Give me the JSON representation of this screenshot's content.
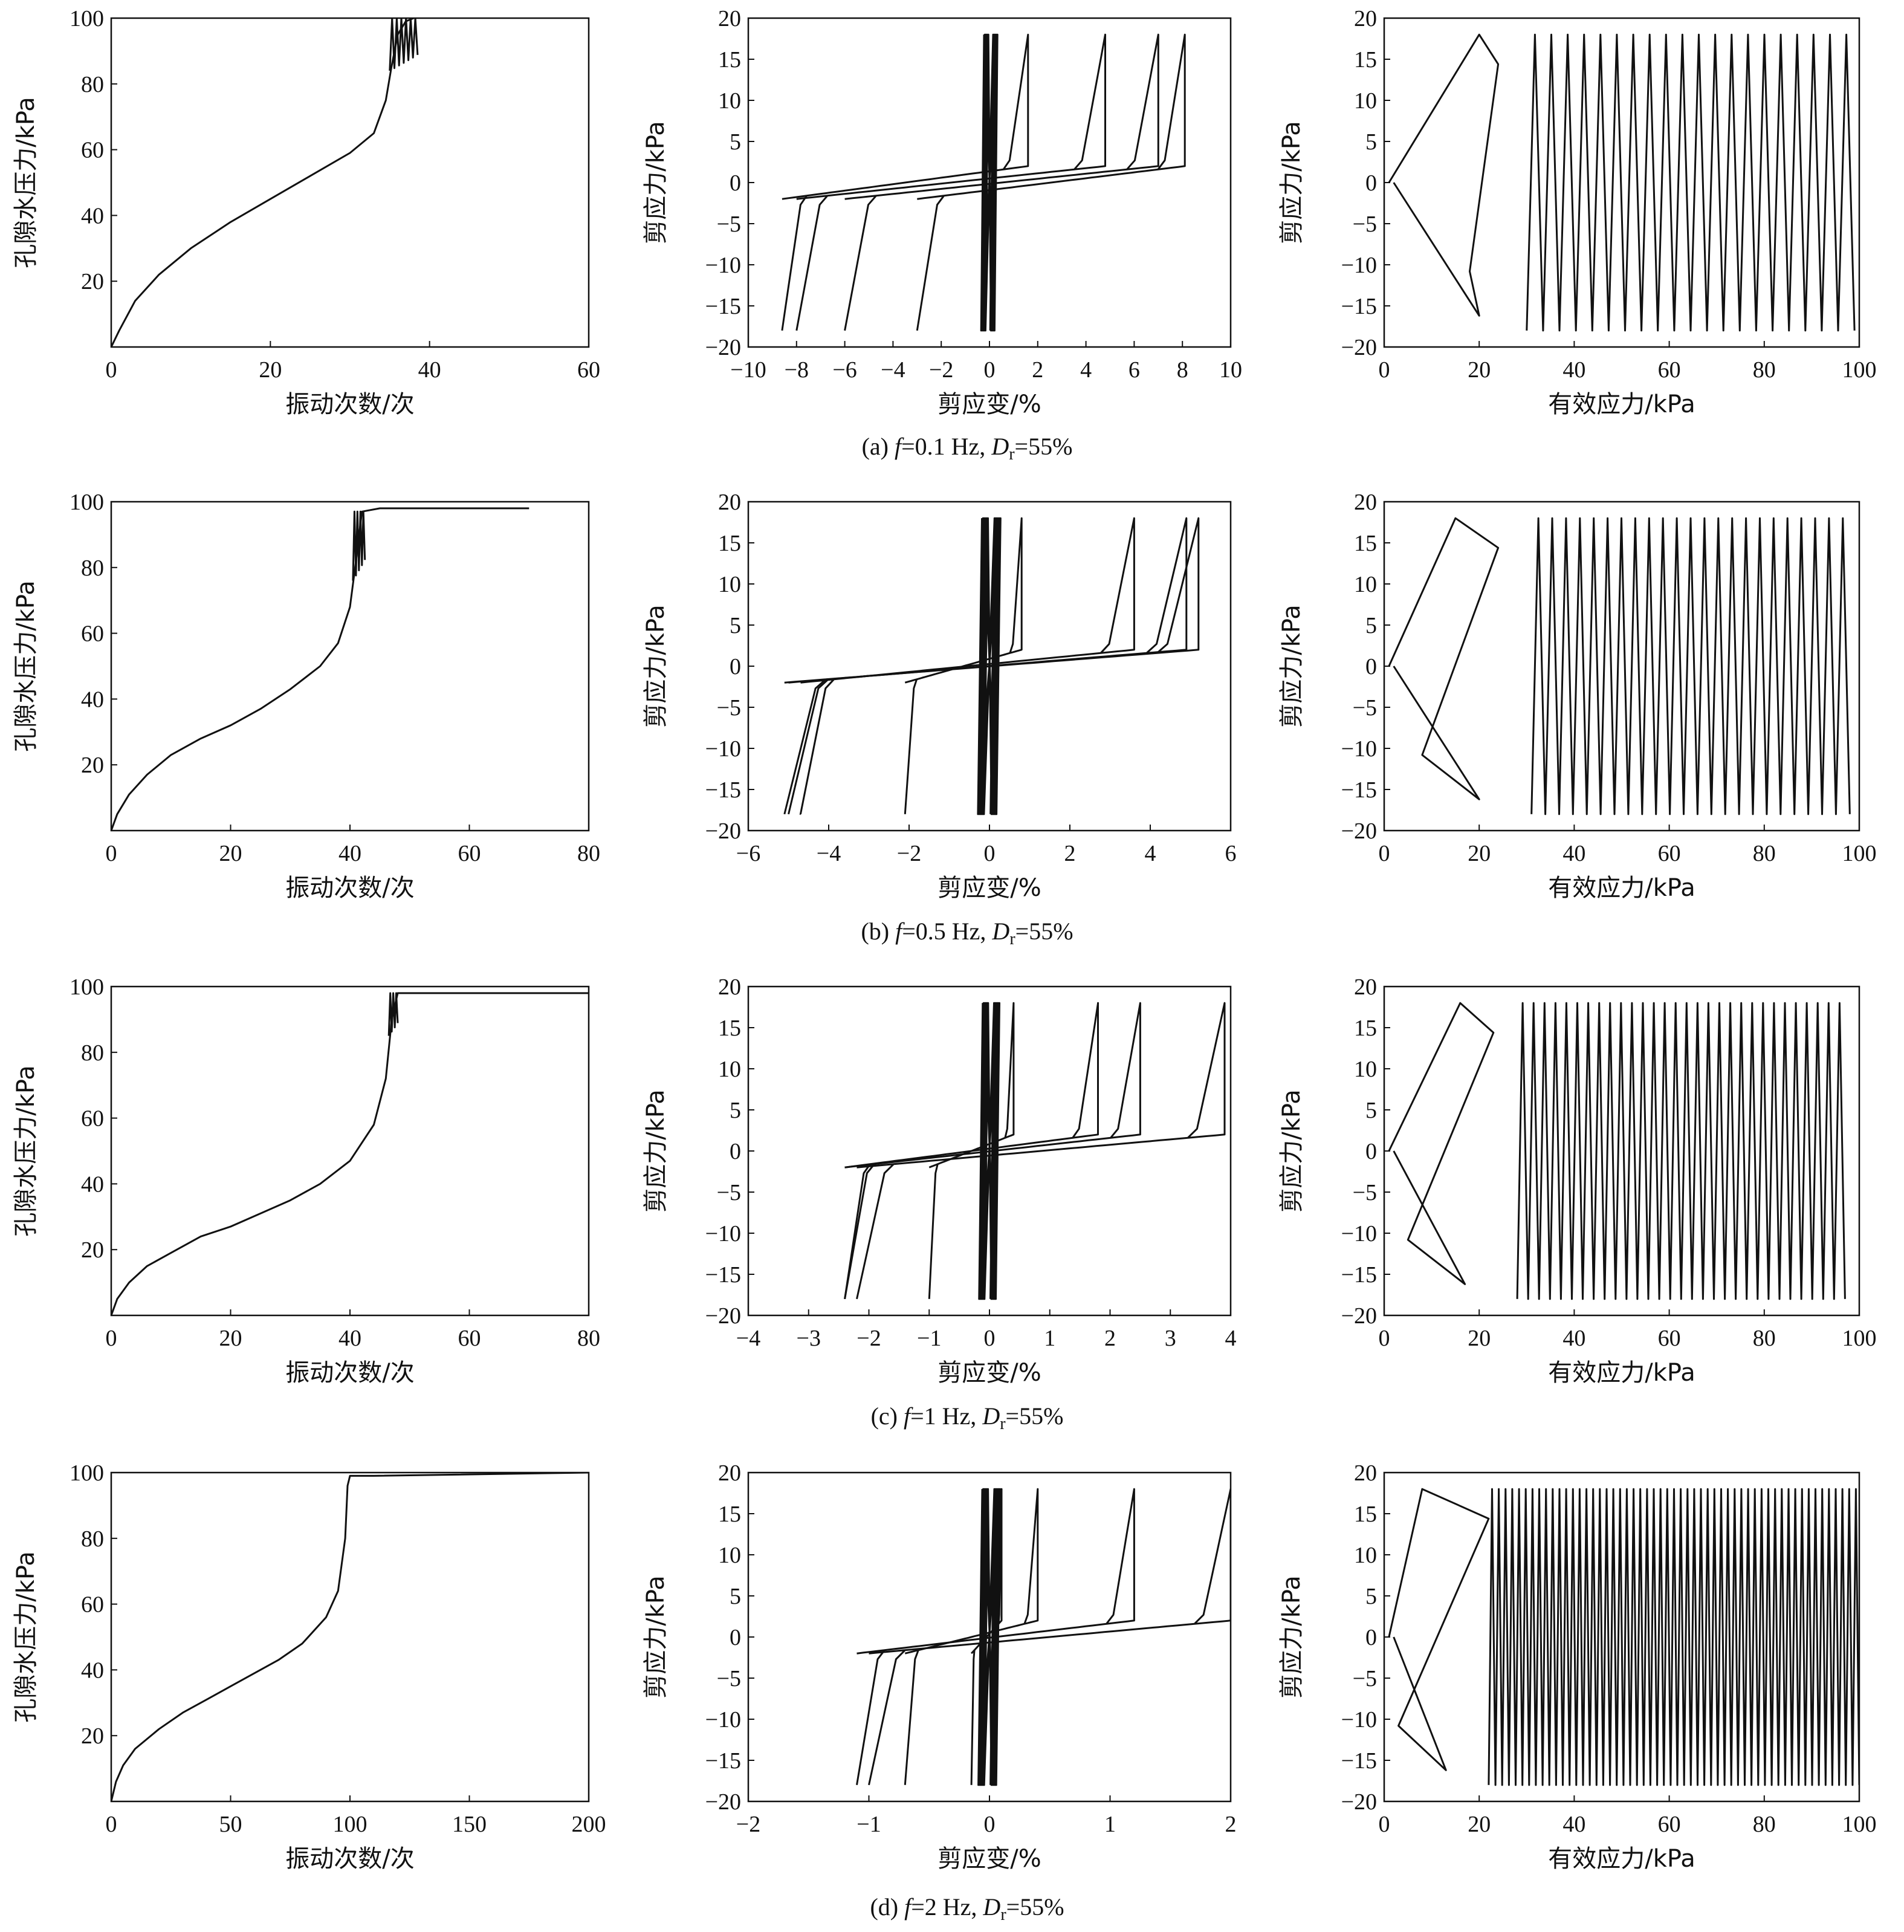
{
  "figure": {
    "rows": [
      {
        "caption": {
          "prefix": "(a) ",
          "f_sym": "f",
          "f_val": "=0.1 Hz, ",
          "d_sym": "D",
          "d_sub": "r",
          "d_val": "=55%"
        }
      },
      {
        "caption": {
          "prefix": "(b) ",
          "f_sym": "f",
          "f_val": "=0.5 Hz, ",
          "d_sym": "D",
          "d_sub": "r",
          "d_val": "=55%"
        }
      },
      {
        "caption": {
          "prefix": "(c) ",
          "f_sym": "f",
          "f_val": "=1 Hz, ",
          "d_sym": "D",
          "d_sub": "r",
          "d_val": "=55%"
        }
      },
      {
        "caption": {
          "prefix": "(d) ",
          "f_sym": "f",
          "f_val": "=2 Hz, ",
          "d_sym": "D",
          "d_sub": "r",
          "d_val": "=55%"
        }
      }
    ]
  },
  "chart_data": [
    {
      "id": "a1",
      "type": "line",
      "xlabel": "振动次数/次",
      "ylabel": "孔隙水压力/kPa",
      "xlim": [
        0,
        60
      ],
      "ylim": [
        0,
        100
      ],
      "xticks": [
        0,
        20,
        40,
        60
      ],
      "yticks": [
        20,
        40,
        60,
        80,
        100
      ],
      "series": [
        {
          "x": [
            0,
            1,
            3,
            6,
            10,
            15,
            20,
            25,
            30,
            33,
            34.5,
            35.2,
            36,
            37,
            38
          ],
          "y": [
            0,
            5,
            14,
            22,
            30,
            38,
            45,
            52,
            59,
            65,
            75,
            85,
            95,
            99,
            100
          ],
          "osc": {
            "x0": 35,
            "x1": 38.5,
            "ylo": 84,
            "yhi": 100,
            "n": 6
          }
        }
      ]
    },
    {
      "id": "a2",
      "type": "line",
      "xlabel": "剪应变/%",
      "ylabel": "剪应力/kPa",
      "xlim": [
        -10,
        10
      ],
      "ylim": [
        -20,
        20
      ],
      "xticks": [
        -10,
        -8,
        -6,
        -4,
        -2,
        0,
        2,
        4,
        6,
        8,
        10
      ],
      "yticks": [
        -20,
        -15,
        -10,
        -5,
        0,
        5,
        10,
        15,
        20
      ],
      "loops": [
        {
          "pos": 1.6,
          "neg": -8.6
        },
        {
          "pos": 4.8,
          "neg": -8.0
        },
        {
          "pos": 7.0,
          "neg": -6.0
        },
        {
          "pos": 8.1,
          "neg": -3.0
        }
      ],
      "peak": 18,
      "core": 0.3
    },
    {
      "id": "a3",
      "type": "line",
      "xlabel": "有效应力/kPa",
      "ylabel": "剪应力/kPa",
      "xlim": [
        0,
        100
      ],
      "ylim": [
        -20,
        20
      ],
      "xticks": [
        0,
        20,
        40,
        60,
        80,
        100
      ],
      "yticks": [
        -20,
        -15,
        -10,
        -5,
        0,
        5,
        10,
        15,
        20
      ],
      "path": {
        "amp": 18,
        "start": 30,
        "end": 99,
        "ncycles": 40,
        "butterfly": [
          20,
          24,
          18,
          20
        ]
      }
    },
    {
      "id": "b1",
      "type": "line",
      "xlabel": "振动次数/次",
      "ylabel": "孔隙水压力/kPa",
      "xlim": [
        0,
        80
      ],
      "ylim": [
        0,
        100
      ],
      "xticks": [
        0,
        20,
        40,
        60,
        80
      ],
      "yticks": [
        20,
        40,
        60,
        80,
        100
      ],
      "series": [
        {
          "x": [
            0,
            1,
            3,
            6,
            10,
            15,
            20,
            25,
            30,
            35,
            38,
            40,
            41,
            42,
            45,
            70
          ],
          "y": [
            0,
            5,
            11,
            17,
            23,
            28,
            32,
            37,
            43,
            50,
            57,
            68,
            82,
            97,
            98,
            98
          ],
          "osc": {
            "x0": 40.5,
            "x1": 42.5,
            "ylo": 76,
            "yhi": 97,
            "n": 4
          }
        }
      ]
    },
    {
      "id": "b2",
      "type": "line",
      "xlabel": "剪应变/%",
      "ylabel": "剪应力/kPa",
      "xlim": [
        -6,
        6
      ],
      "ylim": [
        -20,
        20
      ],
      "xticks": [
        -6,
        -4,
        -2,
        0,
        2,
        4,
        6
      ],
      "yticks": [
        -20,
        -15,
        -10,
        -5,
        0,
        5,
        10,
        15,
        20
      ],
      "loops": [
        {
          "pos": 0.8,
          "neg": -2.1
        },
        {
          "pos": 3.6,
          "neg": -4.7
        },
        {
          "pos": 4.9,
          "neg": -5.0
        },
        {
          "pos": 5.2,
          "neg": -5.1
        }
      ],
      "peak": 18,
      "core": 0.25
    },
    {
      "id": "b3",
      "type": "line",
      "xlabel": "有效应力/kPa",
      "ylabel": "剪应力/kPa",
      "xlim": [
        0,
        100
      ],
      "ylim": [
        -20,
        20
      ],
      "xticks": [
        0,
        20,
        40,
        60,
        80,
        100
      ],
      "yticks": [
        -20,
        -15,
        -10,
        -5,
        0,
        5,
        10,
        15,
        20
      ],
      "path": {
        "amp": 18,
        "start": 31,
        "end": 98,
        "ncycles": 46,
        "butterfly": [
          15,
          24,
          8,
          20
        ]
      }
    },
    {
      "id": "c1",
      "type": "line",
      "xlabel": "振动次数/次",
      "ylabel": "孔隙水压力/kPa",
      "xlim": [
        0,
        80
      ],
      "ylim": [
        0,
        100
      ],
      "xticks": [
        0,
        20,
        40,
        60,
        80
      ],
      "yticks": [
        20,
        40,
        60,
        80,
        100
      ],
      "series": [
        {
          "x": [
            0,
            1,
            3,
            6,
            10,
            15,
            20,
            25,
            30,
            35,
            40,
            44,
            46,
            47,
            48,
            50,
            80
          ],
          "y": [
            0,
            5,
            10,
            15,
            19,
            24,
            27,
            31,
            35,
            40,
            47,
            58,
            72,
            90,
            98,
            98,
            98
          ],
          "osc": {
            "x0": 46.5,
            "x1": 48,
            "ylo": 85,
            "yhi": 98,
            "n": 3
          }
        }
      ]
    },
    {
      "id": "c2",
      "type": "line",
      "xlabel": "剪应变/%",
      "ylabel": "剪应力/kPa",
      "xlim": [
        -4,
        4
      ],
      "ylim": [
        -20,
        20
      ],
      "xticks": [
        -4,
        -3,
        -2,
        -1,
        0,
        1,
        2,
        3,
        4
      ],
      "yticks": [
        -20,
        -15,
        -10,
        -5,
        0,
        5,
        10,
        15,
        20
      ],
      "loops": [
        {
          "pos": 0.4,
          "neg": -1.0
        },
        {
          "pos": 1.8,
          "neg": -2.4
        },
        {
          "pos": 2.5,
          "neg": -2.4
        },
        {
          "pos": 3.9,
          "neg": -2.2
        }
      ],
      "peak": 18,
      "core": 0.15
    },
    {
      "id": "c3",
      "type": "line",
      "xlabel": "有效应力/kPa",
      "ylabel": "剪应力/kPa",
      "xlim": [
        0,
        100
      ],
      "ylim": [
        -20,
        20
      ],
      "xticks": [
        0,
        20,
        40,
        60,
        80,
        100
      ],
      "yticks": [
        -20,
        -15,
        -10,
        -5,
        0,
        5,
        10,
        15,
        20
      ],
      "path": {
        "amp": 18,
        "start": 28,
        "end": 97,
        "ncycles": 60,
        "butterfly": [
          16,
          23,
          5,
          17
        ]
      }
    },
    {
      "id": "d1",
      "type": "line",
      "xlabel": "振动次数/次",
      "ylabel": "孔隙水压力/kPa",
      "xlim": [
        0,
        200
      ],
      "ylim": [
        0,
        100
      ],
      "xticks": [
        0,
        50,
        100,
        150,
        200
      ],
      "yticks": [
        20,
        40,
        60,
        80,
        100
      ],
      "series": [
        {
          "x": [
            0,
            2,
            5,
            10,
            20,
            30,
            40,
            50,
            60,
            70,
            80,
            90,
            95,
            98,
            99,
            100,
            110,
            200
          ],
          "y": [
            0,
            6,
            11,
            16,
            22,
            27,
            31,
            35,
            39,
            43,
            48,
            56,
            64,
            80,
            96,
            99,
            99,
            100
          ]
        }
      ]
    },
    {
      "id": "d2",
      "type": "line",
      "xlabel": "剪应变/%",
      "ylabel": "剪应力/kPa",
      "xlim": [
        -2,
        2
      ],
      "ylim": [
        -20,
        20
      ],
      "xticks": [
        -2,
        -1,
        0,
        1,
        2
      ],
      "yticks": [
        -20,
        -15,
        -10,
        -5,
        0,
        5,
        10,
        15,
        20
      ],
      "loops": [
        {
          "pos": 0.1,
          "neg": -0.15
        },
        {
          "pos": 0.4,
          "neg": -0.7
        },
        {
          "pos": 1.2,
          "neg": -1.1
        },
        {
          "pos": 2.0,
          "neg": -1.0
        }
      ],
      "peak": 18,
      "core": 0.08
    },
    {
      "id": "d3",
      "type": "line",
      "xlabel": "有效应力/kPa",
      "ylabel": "剪应力/kPa",
      "xlim": [
        0,
        100
      ],
      "ylim": [
        -20,
        20
      ],
      "xticks": [
        0,
        20,
        40,
        60,
        80,
        100
      ],
      "yticks": [
        -20,
        -15,
        -10,
        -5,
        0,
        5,
        10,
        15,
        20
      ],
      "path": {
        "amp": 18,
        "start": 22,
        "end": 100,
        "ncycles": 110,
        "butterfly": [
          8,
          22,
          3,
          13
        ]
      }
    }
  ]
}
